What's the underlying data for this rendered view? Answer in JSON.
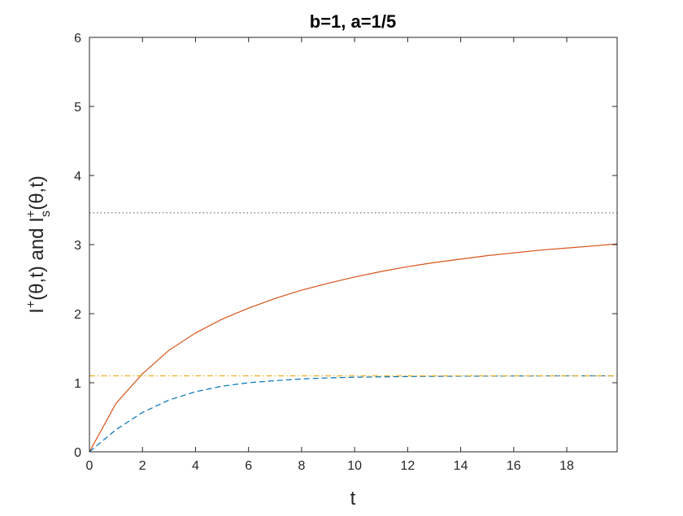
{
  "chart_data": {
    "type": "line",
    "title": "b=1, a=1/5",
    "xlabel": "t",
    "ylabel": {
      "text1": "I",
      "sup1": "+",
      "paren1": "(θ,t) and I",
      "sub2": "s",
      "sup2": "+",
      "paren2": "(θ,t)"
    },
    "xlim": [
      0,
      19.9
    ],
    "ylim": [
      0,
      6
    ],
    "xticks": [
      0,
      2,
      4,
      6,
      8,
      10,
      12,
      14,
      16,
      18
    ],
    "xtick_labels": [
      "0",
      "2",
      "4",
      "6",
      "8",
      "10",
      "12",
      "14",
      "16",
      "18"
    ],
    "yticks": [
      0,
      1,
      2,
      3,
      4,
      5,
      6
    ],
    "ytick_labels": [
      "0",
      "1",
      "2",
      "3",
      "4",
      "5",
      "6"
    ],
    "grid": false,
    "series": [
      {
        "style": "solid",
        "color": "#d95319",
        "x": [
          0,
          1,
          2,
          3,
          4,
          5,
          6,
          7,
          8,
          9,
          10,
          11,
          12,
          13,
          14,
          15,
          16,
          17,
          18,
          19,
          19.9
        ],
        "y": [
          0,
          0.7,
          1.13,
          1.47,
          1.72,
          1.92,
          2.08,
          2.22,
          2.34,
          2.44,
          2.53,
          2.61,
          2.68,
          2.74,
          2.79,
          2.84,
          2.88,
          2.92,
          2.95,
          2.98,
          3.01
        ]
      },
      {
        "style": "dashed",
        "color": "#0072bd",
        "x": [
          0,
          1,
          2,
          3,
          4,
          5,
          6,
          7,
          8,
          9,
          10,
          11,
          12,
          14,
          16,
          18,
          19.9
        ],
        "y": [
          0,
          0.32,
          0.57,
          0.75,
          0.87,
          0.95,
          1.0,
          1.03,
          1.055,
          1.07,
          1.08,
          1.085,
          1.09,
          1.095,
          1.098,
          1.1,
          1.1
        ]
      },
      {
        "style": "dashdot",
        "color": "#edb120",
        "x": [
          0,
          19.9
        ],
        "y": [
          1.1,
          1.1
        ]
      },
      {
        "style": "dotted",
        "color": "#555555",
        "x": [
          0,
          19.9
        ],
        "y": [
          3.46,
          3.46
        ]
      }
    ]
  }
}
